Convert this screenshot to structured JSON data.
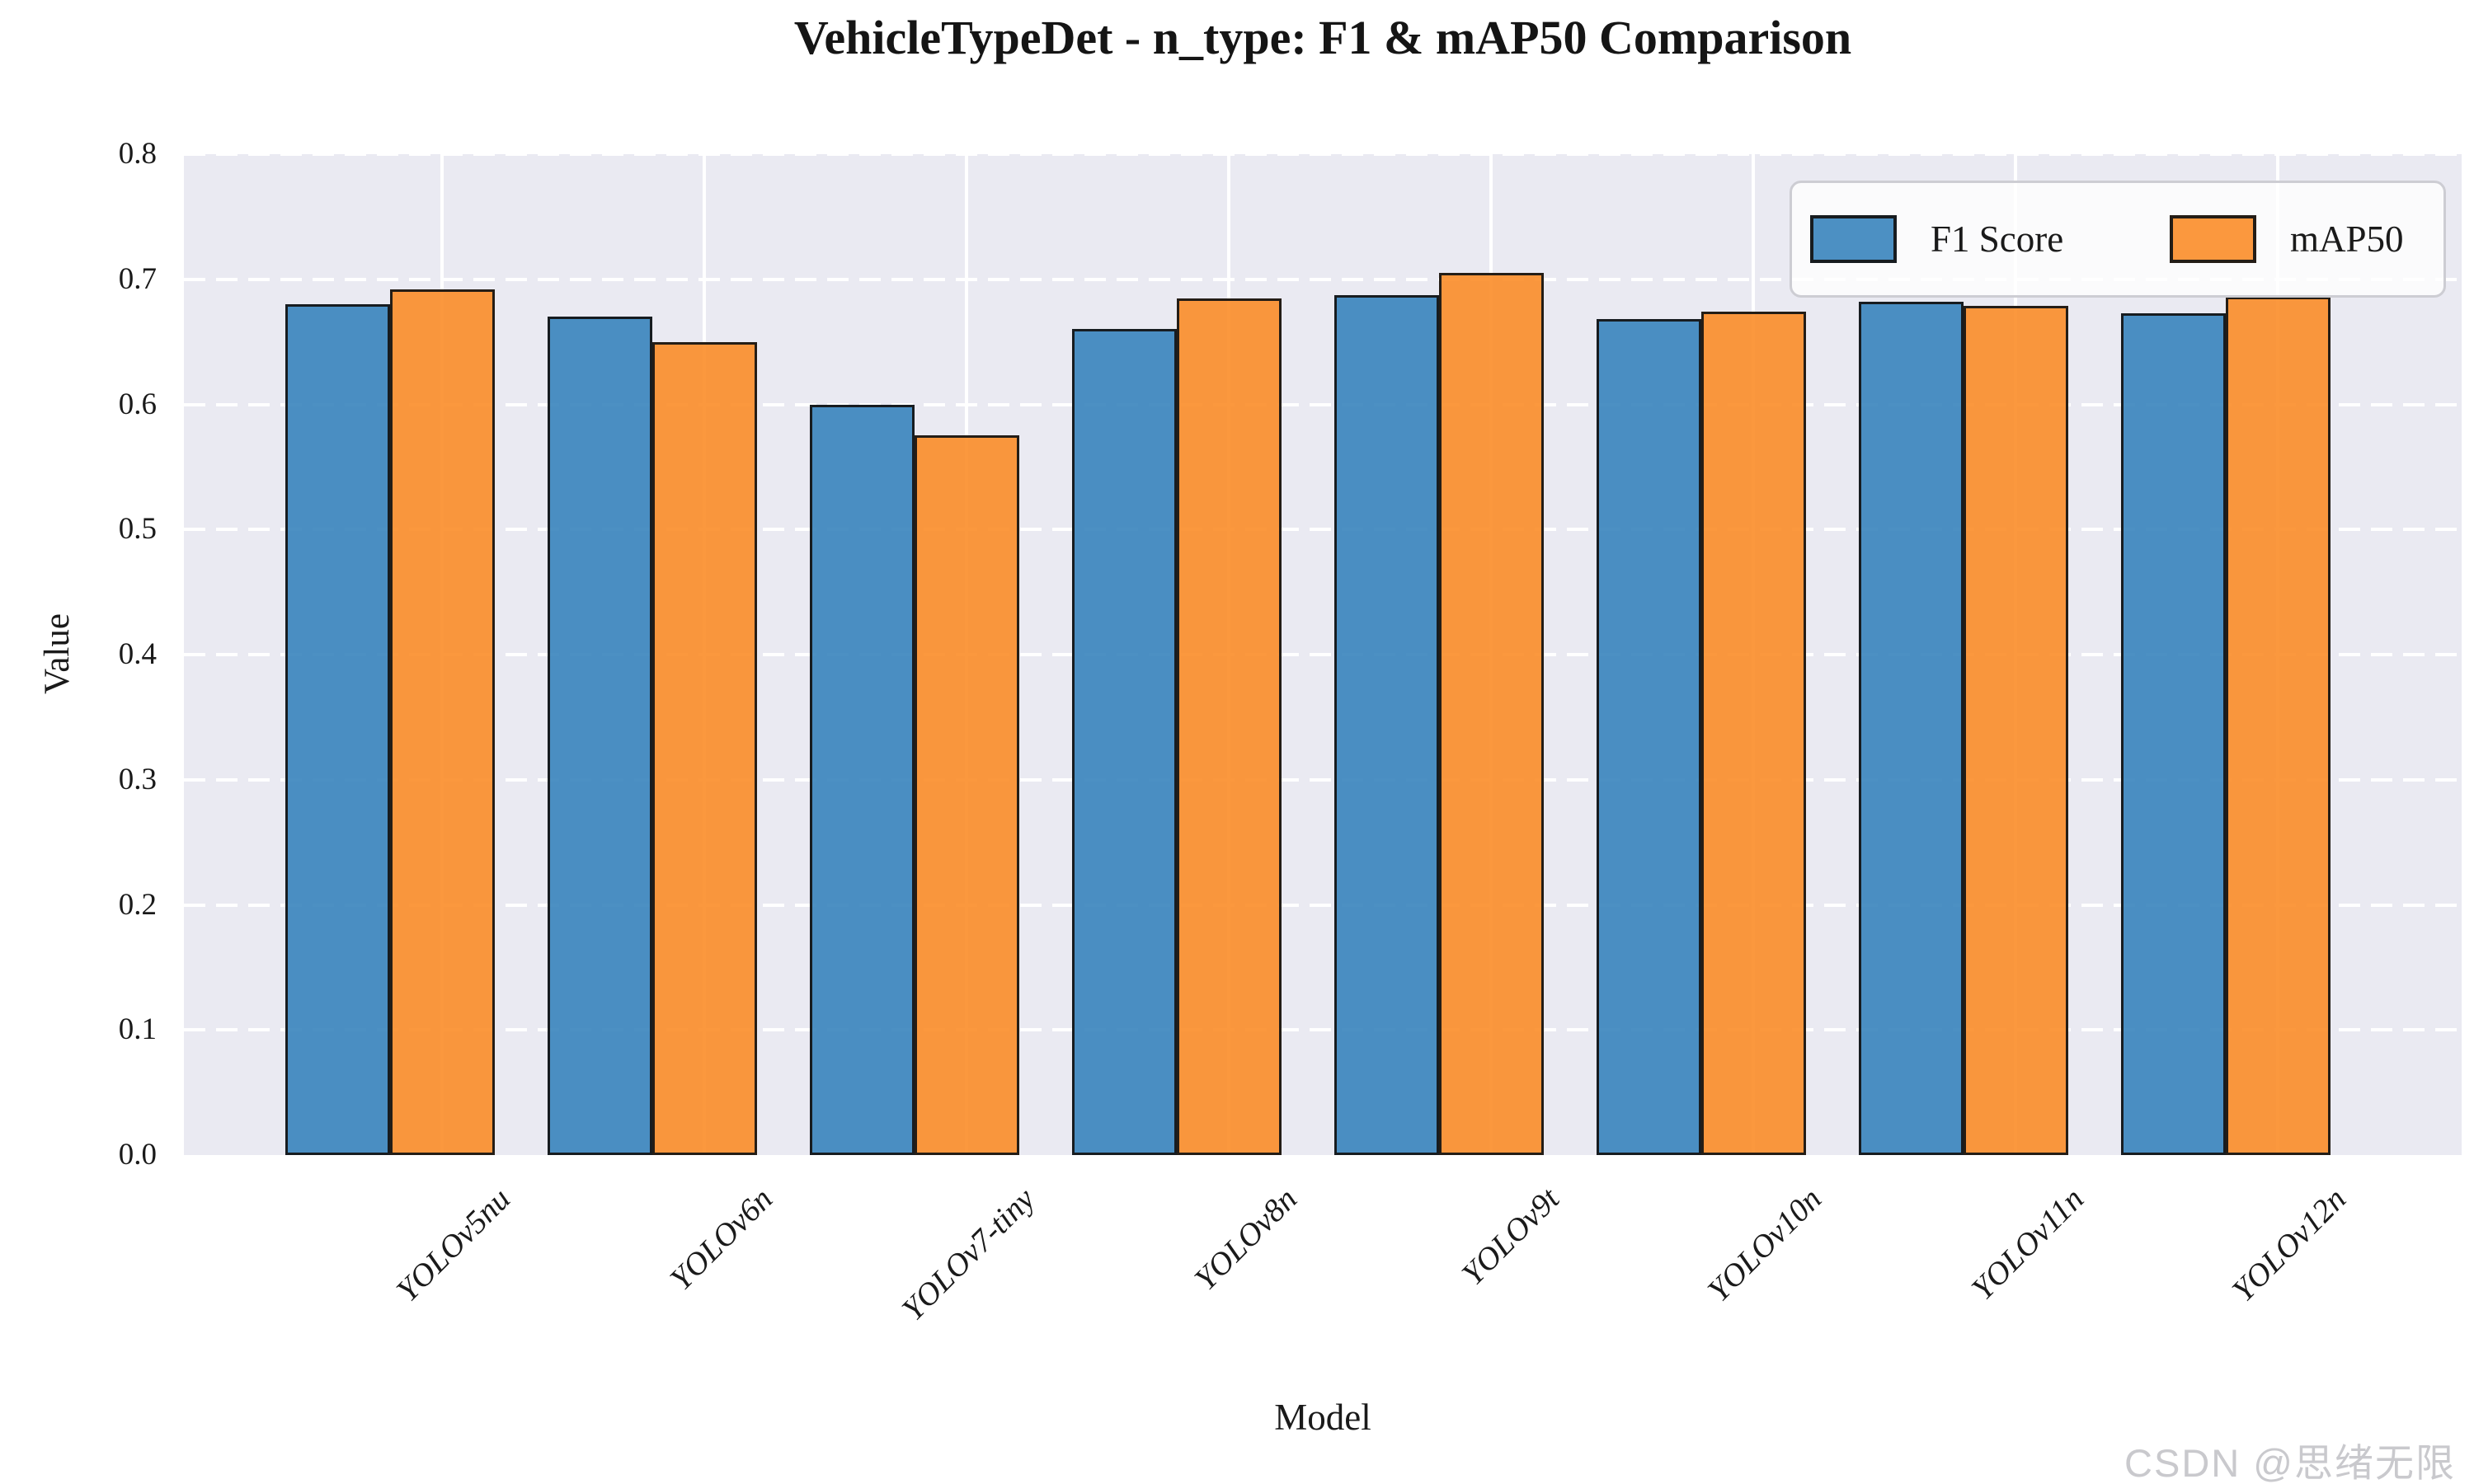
{
  "watermark": "CSDN @思绪无限",
  "colors": {
    "plot_background": "#eaeaf2",
    "figure_background": "#ffffff",
    "grid_line": "#ffffff",
    "bar_edge": "#131313",
    "f1_blue": "#4a8ec2",
    "map50_orange": "#f9963d",
    "legend_border": "#cdcdd3",
    "watermark_gray": "#c9c9cd"
  },
  "chart_data": {
    "type": "bar",
    "title": "VehicleTypeDet - n_type: F1 & mAP50 Comparison",
    "xlabel": "Model",
    "ylabel": "Value",
    "ylim": [
      0.0,
      0.8
    ],
    "ytick_labels": [
      "0.0",
      "0.1",
      "0.2",
      "0.3",
      "0.4",
      "0.5",
      "0.6",
      "0.7",
      "0.8"
    ],
    "categories": [
      "YOLOv5nu",
      "YOLOv6n",
      "YOLOv7-tiny",
      "YOLOv8n",
      "YOLOv9t",
      "YOLOv10n",
      "YOLOv11n",
      "YOLOv12n"
    ],
    "series": [
      {
        "name": "F1 Score",
        "color_composite": "#4a8ec2",
        "color_rgba": "rgba(56,132,189,0.9)",
        "values": [
          0.68,
          0.67,
          0.6,
          0.66,
          0.687,
          0.668,
          0.682,
          0.673
        ]
      },
      {
        "name": "mAP50",
        "color_composite": "#f9963d",
        "color_rgba": "rgba(251,141,41,0.9)",
        "values": [
          0.692,
          0.65,
          0.575,
          0.685,
          0.705,
          0.674,
          0.679,
          0.686
        ]
      }
    ],
    "legend_position": "upper right",
    "grid": {
      "horizontal": "white dashed every 0.1",
      "vertical": "white solid at each category tick"
    },
    "x_tick_rotation_deg": 45
  }
}
